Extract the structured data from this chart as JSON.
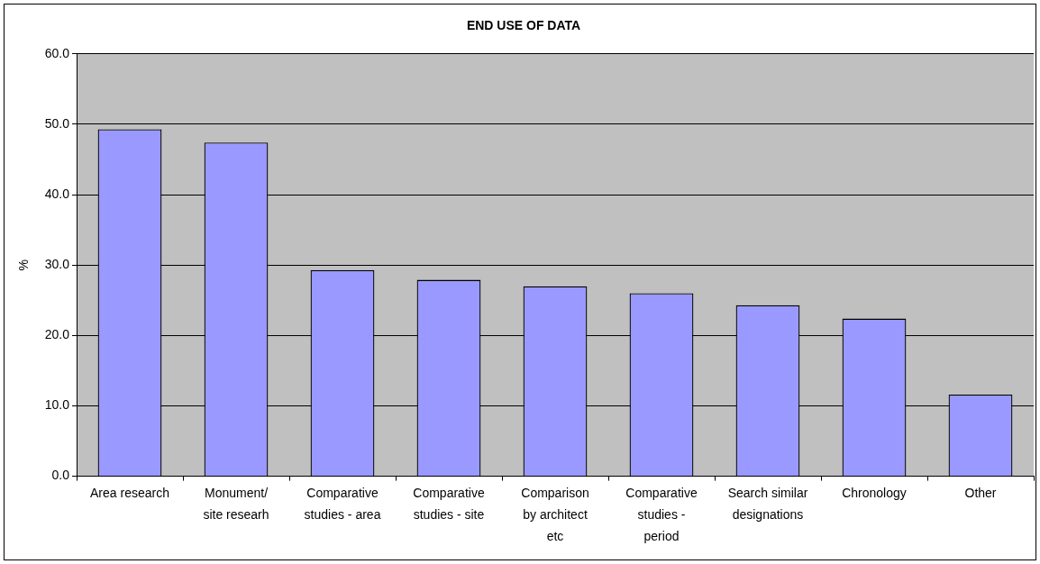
{
  "chart_data": {
    "type": "bar",
    "title": "END USE OF DATA",
    "ylabel": "%",
    "categories": [
      "Area research",
      "Monument/\nsite researh",
      "Comparative\nstudies - area",
      "Comparative\nstudies - site",
      "Comparison\nby architect\netc",
      "Comparative\nstudies -\nperiod",
      "Search similar\ndesignations",
      "Chronology",
      "Other"
    ],
    "values": [
      49.3,
      47.4,
      29.3,
      27.9,
      27.0,
      26.0,
      24.3,
      22.4,
      11.6
    ],
    "color": "#9999ff",
    "ylim": [
      0,
      60
    ],
    "yticks": [
      {
        "value": 0,
        "label": "0.0"
      },
      {
        "value": 10,
        "label": "10.0"
      },
      {
        "value": 20,
        "label": "20.0"
      },
      {
        "value": 30,
        "label": "30.0"
      },
      {
        "value": 40,
        "label": "40.0"
      },
      {
        "value": 50,
        "label": "50.0"
      },
      {
        "value": 60,
        "label": "60.0"
      }
    ],
    "grid": "y",
    "legend": false
  }
}
